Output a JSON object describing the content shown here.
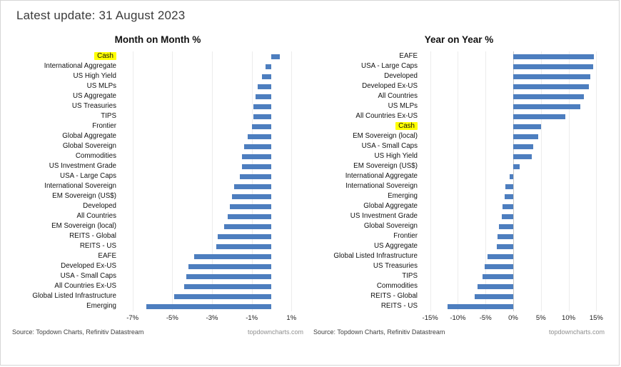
{
  "header": {
    "title": "Latest update: 31 August 2023"
  },
  "footer": {
    "source": "Source: Topdown Charts, Refinitiv Datastream",
    "site": "topdowncharts.com"
  },
  "colors": {
    "bar": "#4d7ebf",
    "highlight": "#ffff00"
  },
  "chart_data": [
    {
      "type": "bar",
      "orientation": "horizontal",
      "title": "Month on Month %",
      "xlabel": "",
      "ylabel": "",
      "xlim": [
        -7.6,
        1.6
      ],
      "grid": true,
      "xticks": [
        -7,
        -5,
        -3,
        -1,
        1
      ],
      "xtick_labels": [
        "-7%",
        "-5%",
        "-3%",
        "-1%",
        "1%"
      ],
      "highlighted_category": "Cash",
      "categories": [
        "Cash",
        "International Aggregate",
        "US High Yield",
        "US MLPs",
        "US Aggregate",
        "US Treasuries",
        "TIPS",
        "Frontier",
        "Global Aggregate",
        "Global Sovereign",
        "Commodities",
        "US Investment Grade",
        "USA - Large Caps",
        "International Sovereign",
        "EM Sovereign (US$)",
        "Developed",
        "All Countries",
        "EM Sovereign (local)",
        "REITS - Global",
        "REITS - US",
        "EAFE",
        "Developed Ex-US",
        "USA - Small Caps",
        "All Countries Ex-US",
        "Global Listed Infrastructure",
        "Emerging"
      ],
      "values": [
        0.4,
        -0.3,
        -0.5,
        -0.7,
        -0.8,
        -0.9,
        -0.9,
        -1.0,
        -1.2,
        -1.4,
        -1.5,
        -1.5,
        -1.6,
        -1.9,
        -2.0,
        -2.1,
        -2.2,
        -2.4,
        -2.7,
        -2.8,
        -3.9,
        -4.2,
        -4.3,
        -4.4,
        -4.9,
        -6.3
      ]
    },
    {
      "type": "bar",
      "orientation": "horizontal",
      "title": "Year on Year %",
      "xlabel": "",
      "ylabel": "",
      "xlim": [
        -16.5,
        16.5
      ],
      "grid": true,
      "xticks": [
        -15,
        -10,
        -5,
        0,
        5,
        10,
        15
      ],
      "xtick_labels": [
        "-15%",
        "-10%",
        "-5%",
        "0%",
        "5%",
        "10%",
        "15%"
      ],
      "highlighted_category": "Cash",
      "categories": [
        "EAFE",
        "USA - Large Caps",
        "Developed",
        "Developed Ex-US",
        "All Countries",
        "US MLPs",
        "All Countries Ex-US",
        "Cash",
        "EM Sovereign (local)",
        "USA - Small Caps",
        "US High Yield",
        "EM Sovereign (US$)",
        "International Aggregate",
        "International Sovereign",
        "Emerging",
        "Global Aggregate",
        "US Investment Grade",
        "Global Sovereign",
        "Frontier",
        "US Aggregate",
        "Global Listed Infrastructure",
        "US Treasuries",
        "TIPS",
        "Commodities",
        "REITS - Global",
        "REITS - US"
      ],
      "values": [
        14.6,
        14.4,
        13.9,
        13.6,
        12.7,
        12.1,
        9.4,
        5.0,
        4.5,
        3.6,
        3.4,
        1.1,
        -0.6,
        -1.4,
        -1.5,
        -1.9,
        -2.0,
        -2.6,
        -2.9,
        -3.0,
        -4.7,
        -5.1,
        -5.6,
        -6.5,
        -6.9,
        -11.8
      ]
    }
  ]
}
